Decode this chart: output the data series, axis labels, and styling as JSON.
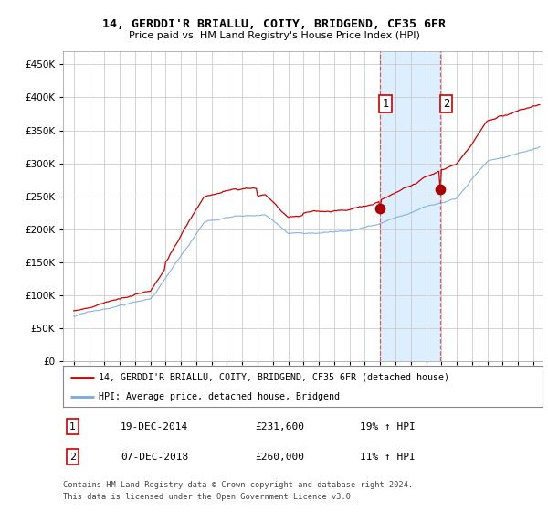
{
  "title": "14, GERDDI'R BRIALLU, COITY, BRIDGEND, CF35 6FR",
  "subtitle": "Price paid vs. HM Land Registry's House Price Index (HPI)",
  "legend_line1": "14, GERDDI'R BRIALLU, COITY, BRIDGEND, CF35 6FR (detached house)",
  "legend_line2": "HPI: Average price, detached house, Bridgend",
  "annotation1_label": "1",
  "annotation1_date": "19-DEC-2014",
  "annotation1_price": "£231,600",
  "annotation1_hpi": "19% ↑ HPI",
  "annotation2_label": "2",
  "annotation2_date": "07-DEC-2018",
  "annotation2_price": "£260,000",
  "annotation2_hpi": "11% ↑ HPI",
  "footer": "Contains HM Land Registry data © Crown copyright and database right 2024.\nThis data is licensed under the Open Government Licence v3.0.",
  "hpi_color": "#7aaadd",
  "price_color": "#cc0000",
  "dot_color": "#aa0000",
  "vline_color": "#cc4444",
  "shade_color": "#ddeeff",
  "background_color": "#ffffff",
  "grid_color": "#cccccc",
  "ylim": [
    0,
    470000
  ],
  "yticks": [
    0,
    50000,
    100000,
    150000,
    200000,
    250000,
    300000,
    350000,
    400000,
    450000
  ],
  "anno1_x": 2014.97,
  "anno1_y": 231600,
  "anno2_x": 2018.95,
  "anno2_y": 260000,
  "xlim_left": 1994.3,
  "xlim_right": 2025.6
}
